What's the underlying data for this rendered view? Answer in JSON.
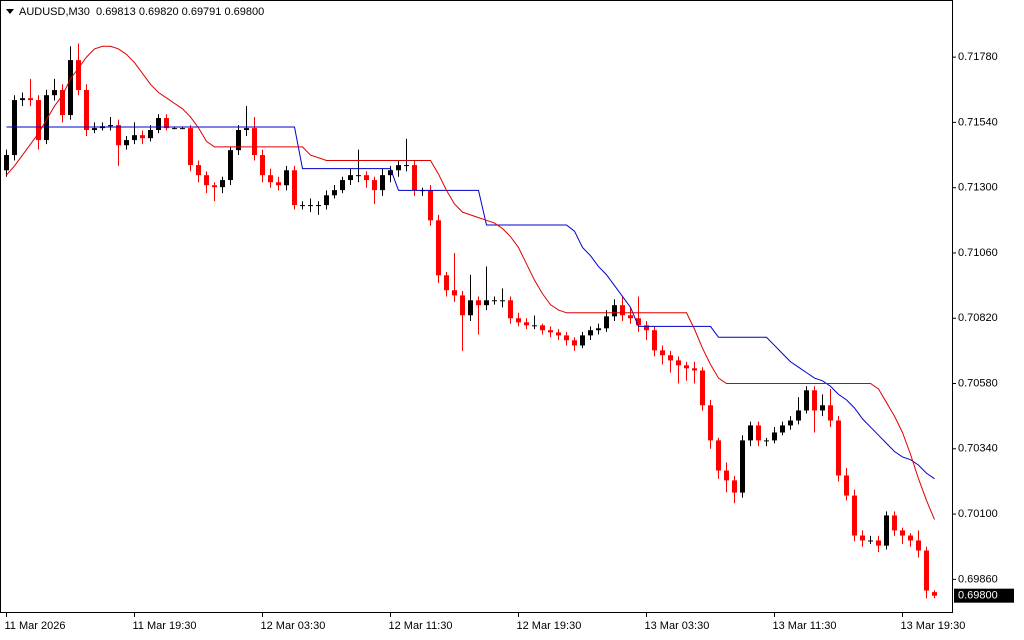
{
  "chart_data": {
    "type": "candlestick",
    "title": "AUDUSD,M30  0.69813 0.69820 0.69791 0.69800",
    "up_color": "#000000",
    "down_color": "#ff0000",
    "ylim": [
      0.6974,
      0.7199
    ],
    "yticks": [
      {
        "value": 0.7178,
        "label": "0.71780"
      },
      {
        "value": 0.7154,
        "label": "0.71540"
      },
      {
        "value": 0.713,
        "label": "0.71300"
      },
      {
        "value": 0.7106,
        "label": "0.71060"
      },
      {
        "value": 0.7082,
        "label": "0.70820"
      },
      {
        "value": 0.7058,
        "label": "0.70580"
      },
      {
        "value": 0.7034,
        "label": "0.70340"
      },
      {
        "value": 0.701,
        "label": "0.70100"
      },
      {
        "value": 0.6986,
        "label": "0.69860"
      }
    ],
    "current_price": {
      "value": 0.698,
      "label": "0.69800"
    },
    "categories": [
      "11 Mar 2026",
      null,
      null,
      null,
      null,
      null,
      null,
      null,
      null,
      null,
      null,
      null,
      null,
      null,
      null,
      null,
      "11 Mar 19:30",
      null,
      null,
      null,
      null,
      null,
      null,
      null,
      null,
      null,
      null,
      null,
      null,
      null,
      null,
      null,
      "12 Mar 03:30",
      null,
      null,
      null,
      null,
      null,
      null,
      null,
      null,
      null,
      null,
      null,
      null,
      null,
      null,
      null,
      "12 Mar 11:30",
      null,
      null,
      null,
      null,
      null,
      null,
      null,
      null,
      null,
      null,
      null,
      null,
      null,
      null,
      null,
      "12 Mar 19:30",
      null,
      null,
      null,
      null,
      null,
      null,
      null,
      null,
      null,
      null,
      null,
      null,
      null,
      null,
      null,
      "13 Mar 03:30",
      null,
      null,
      null,
      null,
      null,
      null,
      null,
      null,
      null,
      null,
      null,
      null,
      null,
      null,
      null,
      "13 Mar 11:30",
      null,
      null,
      null,
      null,
      null,
      null,
      null,
      null,
      null,
      null,
      null,
      null,
      null,
      null,
      null,
      "13 Mar 19:30",
      null,
      null,
      null,
      null
    ],
    "open": [
      0.71364,
      0.7142,
      0.71622,
      0.71629,
      0.71622,
      0.71475,
      0.7164,
      0.71659,
      0.71567,
      0.71769,
      0.71659,
      0.71512,
      0.71519,
      0.71526,
      0.7153,
      0.71456,
      0.71475,
      0.71493,
      0.71482,
      0.71512,
      0.71556,
      0.71519,
      0.71519,
      0.71519,
      0.71383,
      0.71346,
      0.71309,
      0.71302,
      0.71328,
      0.71438,
      0.71512,
      0.71519,
      0.7142,
      0.71346,
      0.7132,
      0.71309,
      0.71364,
      0.71236,
      0.71236,
      0.71236,
      0.71236,
      0.71272,
      0.71291,
      0.71328,
      0.71346,
      0.71346,
      0.71328,
      0.71291,
      0.71346,
      0.71364,
      0.71383,
      0.71383,
      0.71291,
      0.71291,
      0.7118,
      0.70978,
      0.70923,
      0.70904,
      0.70831,
      0.70886,
      0.70868,
      0.70886,
      0.70886,
      0.70886,
      0.7082,
      0.70805,
      0.70794,
      0.70794,
      0.70776,
      0.70768,
      0.70757,
      0.70739,
      0.7072,
      0.70757,
      0.70776,
      0.70783,
      0.70827,
      0.70868,
      0.70831,
      0.7082,
      0.70794,
      0.70776,
      0.70702,
      0.70684,
      0.70665,
      0.70647,
      0.70636,
      0.70628,
      0.705,
      0.70371,
      0.7026,
      0.70224,
      0.70179,
      0.70371,
      0.70426,
      0.70371,
      0.70371,
      0.704,
      0.70426,
      0.70444,
      0.70481,
      0.70555,
      0.70481,
      0.705,
      0.70444,
      0.70242,
      0.70168,
      0.70021,
      0.70003,
      0.70003,
      0.69984,
      0.70095,
      0.7004,
      0.70021,
      0.70003,
      0.69966,
      0.69813
    ],
    "high": [
      0.7144,
      0.7164,
      0.7165,
      0.717,
      0.7164,
      0.7166,
      0.717,
      0.7168,
      0.7182,
      0.7183,
      0.7168,
      0.7154,
      0.7154,
      0.7156,
      0.7155,
      0.7149,
      0.7154,
      0.7151,
      0.7153,
      0.7157,
      0.7157,
      0.71525,
      0.71525,
      0.7153,
      0.714,
      0.7136,
      0.7132,
      0.7134,
      0.7145,
      0.7153,
      0.716,
      0.7156,
      0.7144,
      0.7137,
      0.7134,
      0.7138,
      0.7138,
      0.7125,
      0.7126,
      0.7125,
      0.7129,
      0.7131,
      0.7134,
      0.7137,
      0.7144,
      0.7136,
      0.7134,
      0.7137,
      0.7138,
      0.714,
      0.7148,
      0.714,
      0.713,
      0.7131,
      0.712,
      0.7099,
      0.7106,
      0.7092,
      0.7098,
      0.709,
      0.7101,
      0.709,
      0.7093,
      0.709,
      0.7084,
      0.7082,
      0.7083,
      0.708,
      0.7079,
      0.7078,
      0.7077,
      0.7075,
      0.7077,
      0.7079,
      0.708,
      0.7085,
      0.7089,
      0.709,
      0.7086,
      0.709,
      0.7081,
      0.7079,
      0.7072,
      0.707,
      0.7068,
      0.7066,
      0.7066,
      0.7064,
      0.7052,
      0.7038,
      0.7029,
      0.7024,
      0.7039,
      0.7044,
      0.7044,
      0.7038,
      0.7042,
      0.7044,
      0.7046,
      0.7053,
      0.7057,
      0.7057,
      0.7054,
      0.7056,
      0.7046,
      0.7027,
      0.7019,
      0.7004,
      0.7002,
      0.7002,
      0.7011,
      0.7011,
      0.7005,
      0.7003,
      0.7004,
      0.6998,
      0.6982
    ],
    "low": [
      0.7134,
      0.714,
      0.716,
      0.716,
      0.7144,
      0.7146,
      0.7162,
      0.7154,
      0.7155,
      0.7164,
      0.7149,
      0.715,
      0.7151,
      0.7151,
      0.7138,
      0.7144,
      0.7146,
      0.7146,
      0.7147,
      0.715,
      0.7151,
      0.71515,
      0.71515,
      0.7136,
      0.7132,
      0.7128,
      0.7125,
      0.7128,
      0.7131,
      0.7142,
      0.7149,
      0.714,
      0.7132,
      0.713,
      0.7129,
      0.7129,
      0.7122,
      0.7122,
      0.7121,
      0.712,
      0.7122,
      0.7126,
      0.7128,
      0.7131,
      0.7132,
      0.713,
      0.7124,
      0.7127,
      0.7132,
      0.7134,
      0.7136,
      0.7127,
      0.7127,
      0.7116,
      0.7095,
      0.709,
      0.7088,
      0.707,
      0.7081,
      0.7076,
      0.7085,
      0.7087,
      0.7086,
      0.708,
      0.7079,
      0.7078,
      0.7078,
      0.7076,
      0.7075,
      0.7074,
      0.7072,
      0.707,
      0.7071,
      0.7074,
      0.7076,
      0.7077,
      0.7081,
      0.7081,
      0.708,
      0.7077,
      0.7074,
      0.7068,
      0.7065,
      0.7062,
      0.7058,
      0.7059,
      0.7058,
      0.7048,
      0.7034,
      0.7023,
      0.7018,
      0.7014,
      0.7016,
      0.7035,
      0.7035,
      0.7035,
      0.7036,
      0.7039,
      0.7041,
      0.7043,
      0.7047,
      0.704,
      0.7046,
      0.7042,
      0.7022,
      0.7015,
      0.7,
      0.6998,
      0.6999,
      0.6996,
      0.6997,
      0.7002,
      0.6999,
      0.6998,
      0.6994,
      0.6979,
      0.69791
    ],
    "close": [
      0.7142,
      0.71622,
      0.71629,
      0.71622,
      0.71475,
      0.7164,
      0.71659,
      0.71567,
      0.71769,
      0.71659,
      0.71512,
      0.71519,
      0.71526,
      0.7153,
      0.71456,
      0.71475,
      0.71493,
      0.71482,
      0.71512,
      0.71556,
      0.71519,
      0.71519,
      0.71519,
      0.71383,
      0.71346,
      0.71309,
      0.71302,
      0.71328,
      0.71438,
      0.71512,
      0.71519,
      0.7142,
      0.71346,
      0.7132,
      0.71309,
      0.71364,
      0.71236,
      0.71236,
      0.71236,
      0.71236,
      0.71272,
      0.71291,
      0.71328,
      0.71346,
      0.71346,
      0.71328,
      0.71291,
      0.71346,
      0.71364,
      0.71383,
      0.71383,
      0.71291,
      0.71291,
      0.7118,
      0.70978,
      0.70923,
      0.70904,
      0.70831,
      0.70886,
      0.70868,
      0.70886,
      0.70886,
      0.70886,
      0.7082,
      0.70805,
      0.70794,
      0.70794,
      0.70776,
      0.70768,
      0.70757,
      0.70739,
      0.7072,
      0.70757,
      0.70776,
      0.70783,
      0.70827,
      0.70868,
      0.70831,
      0.7082,
      0.70794,
      0.70776,
      0.70702,
      0.70684,
      0.70665,
      0.70647,
      0.70636,
      0.70628,
      0.705,
      0.70371,
      0.7026,
      0.70224,
      0.70179,
      0.70371,
      0.70426,
      0.70371,
      0.70371,
      0.704,
      0.70426,
      0.70444,
      0.70481,
      0.70555,
      0.70481,
      0.705,
      0.70444,
      0.70242,
      0.70168,
      0.70021,
      0.70003,
      0.70003,
      0.69984,
      0.70095,
      0.7004,
      0.70021,
      0.70003,
      0.69966,
      0.69819,
      0.698
    ],
    "lines": [
      {
        "color": "#0000cc",
        "values": [
          0.71523,
          0.71523,
          0.71523,
          0.71523,
          0.71523,
          0.71523,
          0.71523,
          0.71523,
          0.71523,
          0.71523,
          0.71523,
          0.71523,
          0.71523,
          0.71523,
          0.71523,
          0.71523,
          0.71523,
          0.71523,
          0.71523,
          0.71523,
          0.71523,
          0.71523,
          0.71523,
          0.71523,
          0.71523,
          0.71523,
          0.71523,
          0.71523,
          0.71523,
          0.71523,
          0.71523,
          0.71523,
          0.71523,
          0.71523,
          0.71523,
          0.71523,
          0.71523,
          0.7137,
          0.7137,
          0.7137,
          0.7137,
          0.7137,
          0.7137,
          0.7137,
          0.7137,
          0.7137,
          0.7137,
          0.7137,
          0.7137,
          0.7129,
          0.7129,
          0.7129,
          0.7129,
          0.7129,
          0.7129,
          0.7129,
          0.7129,
          0.7129,
          0.7129,
          0.7129,
          0.71163,
          0.71163,
          0.71163,
          0.71163,
          0.71163,
          0.71163,
          0.71163,
          0.71163,
          0.71163,
          0.71163,
          0.71163,
          0.7114,
          0.7108,
          0.7105,
          0.7101,
          0.7098,
          0.7094,
          0.709,
          0.7086,
          0.7079,
          0.7079,
          0.7079,
          0.7079,
          0.7079,
          0.7079,
          0.7079,
          0.7079,
          0.7079,
          0.7079,
          0.7075,
          0.7075,
          0.7075,
          0.7075,
          0.7075,
          0.7075,
          0.7075,
          0.7072,
          0.7069,
          0.7066,
          0.7064,
          0.7062,
          0.706,
          0.7059,
          0.7057,
          0.7054,
          0.7052,
          0.7049,
          0.7045,
          0.7042,
          0.7039,
          0.7036,
          0.7033,
          0.7031,
          0.703,
          0.7028,
          0.7025,
          0.7023
        ]
      },
      {
        "color": "#dd0000",
        "values": [
          0.71347,
          0.7138,
          0.7142,
          0.7146,
          0.715,
          0.7155,
          0.716,
          0.7164,
          0.717,
          0.7174,
          0.7178,
          0.7181,
          0.7182,
          0.7182,
          0.7181,
          0.7179,
          0.7176,
          0.7172,
          0.7168,
          0.7165,
          0.7163,
          0.7161,
          0.7159,
          0.7156,
          0.7152,
          0.7147,
          0.7145,
          0.7145,
          0.7145,
          0.7145,
          0.7145,
          0.7145,
          0.7145,
          0.7145,
          0.7145,
          0.7145,
          0.7145,
          0.7145,
          0.7142,
          0.7141,
          0.714,
          0.714,
          0.714,
          0.714,
          0.714,
          0.714,
          0.714,
          0.714,
          0.714,
          0.714,
          0.714,
          0.714,
          0.714,
          0.714,
          0.7135,
          0.7129,
          0.7124,
          0.7121,
          0.712,
          0.7119,
          0.7118,
          0.7117,
          0.7115,
          0.7112,
          0.7108,
          0.7102,
          0.7096,
          0.7091,
          0.7087,
          0.7085,
          0.7084,
          0.7084,
          0.7084,
          0.7084,
          0.7084,
          0.7084,
          0.7084,
          0.7084,
          0.7084,
          0.7084,
          0.7084,
          0.7084,
          0.7084,
          0.7084,
          0.7084,
          0.7084,
          0.7078,
          0.7071,
          0.7065,
          0.706,
          0.7058,
          0.7058,
          0.7058,
          0.7058,
          0.7058,
          0.7058,
          0.7058,
          0.7058,
          0.7058,
          0.7058,
          0.7058,
          0.7058,
          0.7058,
          0.7058,
          0.7058,
          0.7058,
          0.7058,
          0.7058,
          0.7058,
          0.7056,
          0.7051,
          0.7046,
          0.704,
          0.7032,
          0.7023,
          0.7015,
          0.7008
        ]
      }
    ]
  }
}
